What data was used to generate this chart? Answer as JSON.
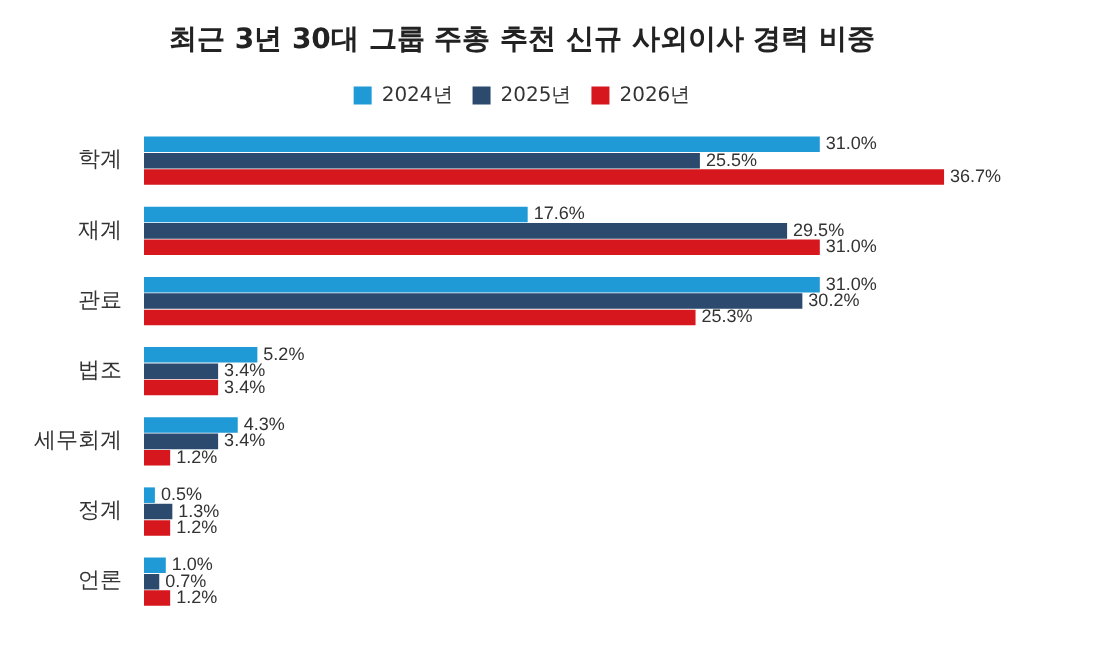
{
  "chart_data": {
    "type": "bar",
    "orientation": "horizontal",
    "title": "최근 3년 30대 그룹 주총 추천 신규 사외이사 경력 비중",
    "categories": [
      "학계",
      "재계",
      "관료",
      "법조",
      "세무회계",
      "정계",
      "언론"
    ],
    "series": [
      {
        "name": "2024년",
        "color": "#1f9ad6",
        "values": [
          31.0,
          17.6,
          31.0,
          5.2,
          4.3,
          0.5,
          1.0
        ],
        "value_labels": [
          "31.0%",
          "17.6%",
          "31.0%",
          "5.2%",
          "4.3%",
          "0.5%",
          "1.0%"
        ]
      },
      {
        "name": "2025년",
        "color": "#2b4a6e",
        "values": [
          25.5,
          29.5,
          30.2,
          3.4,
          3.4,
          1.3,
          0.7
        ],
        "value_labels": [
          "25.5%",
          "29.5%",
          "30.2%",
          "3.4%",
          "3.4%",
          "1.3%",
          "0.7%"
        ]
      },
      {
        "name": "2026년",
        "color": "#d6171e",
        "values": [
          36.7,
          31.0,
          25.3,
          3.4,
          1.2,
          1.2,
          1.2
        ],
        "value_labels": [
          "36.7%",
          "31.0%",
          "25.3%",
          "3.4%",
          "1.2%",
          "1.2%",
          "1.2%"
        ]
      }
    ],
    "tick_labels": "y",
    "grid": false,
    "legend": "top"
  }
}
